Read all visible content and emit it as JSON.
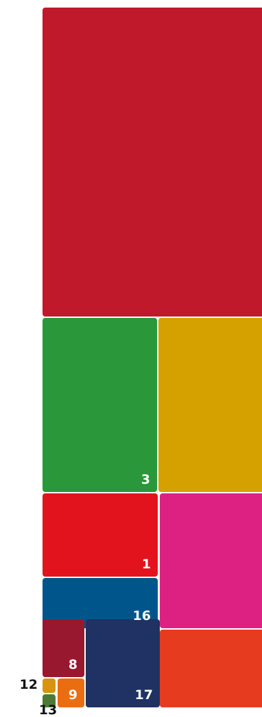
{
  "chart_data": {
    "type": "treemap",
    "items": [
      {
        "label": "",
        "color": "#c0192c"
      },
      {
        "label": "3",
        "color": "#2a973b"
      },
      {
        "label": "",
        "color": "#d5a100"
      },
      {
        "label": "1",
        "color": "#e3131e"
      },
      {
        "label": "",
        "color": "#dd2183"
      },
      {
        "label": "16",
        "color": "#00558a"
      },
      {
        "label": "8",
        "color": "#981830"
      },
      {
        "label": "17",
        "color": "#1f3263"
      },
      {
        "label": "",
        "color": "#e63b1f"
      },
      {
        "label": "12",
        "color": "#d7940f"
      },
      {
        "label": "13",
        "color": "#4c7a34"
      },
      {
        "label": "9",
        "color": "#ea6d12"
      }
    ]
  }
}
